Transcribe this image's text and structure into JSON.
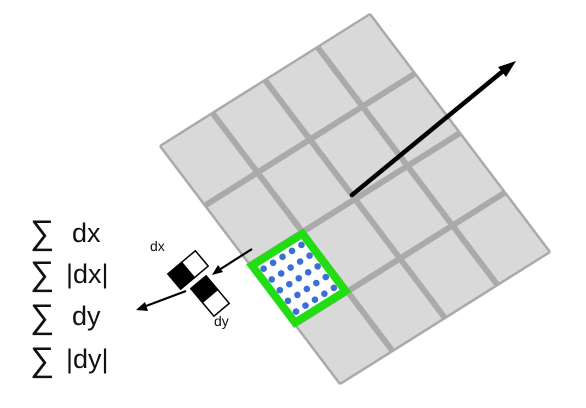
{
  "grid": {
    "rows": 4,
    "cols": 4,
    "cell_fill": "#d9d9d9",
    "line_color": "#aaaaaa"
  },
  "highlight": {
    "cell_row": 2,
    "cell_col": 0,
    "border_color": "#22dd11",
    "inner_fill": "#ffffff",
    "sample_grid": 5,
    "sample_color": "#3b6fd6"
  },
  "wavelet_labels": {
    "dx": "dx",
    "dy": "dy"
  },
  "features": {
    "sum_symbol": "∑",
    "items": [
      "dx",
      "|dx|",
      "dy",
      "|dy|"
    ]
  },
  "colors": {
    "arrow": "#000000",
    "wavelet_black": "#000000",
    "wavelet_white": "#ffffff"
  }
}
